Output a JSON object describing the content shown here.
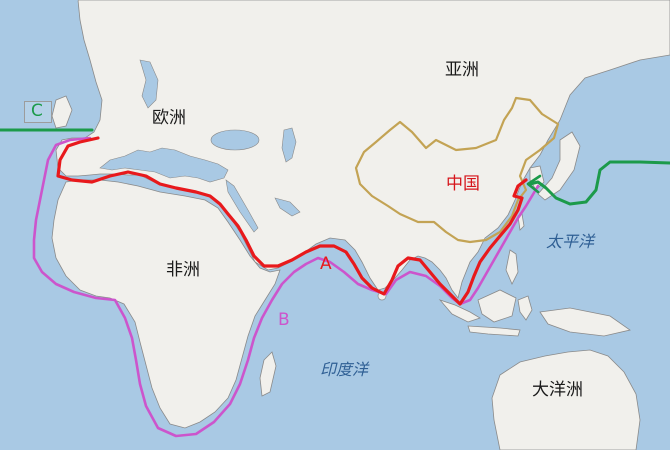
{
  "labels": {
    "asia": "亚洲",
    "europe": "欧洲",
    "africa": "非洲",
    "oceania": "大洋洲",
    "china": "中国",
    "pacific": "太平洋",
    "indian": "印度洋"
  },
  "routes": {
    "a": {
      "label": "A",
      "color": "#e8191c"
    },
    "b": {
      "label": "B",
      "color": "#cc55cc"
    },
    "c": {
      "label": "C",
      "color": "#1c9a4a"
    }
  },
  "colors": {
    "sea": "#a9c9e4",
    "land": "#f1f0ec",
    "coast": "#8a8a8a",
    "china_border": "#c3a354"
  }
}
